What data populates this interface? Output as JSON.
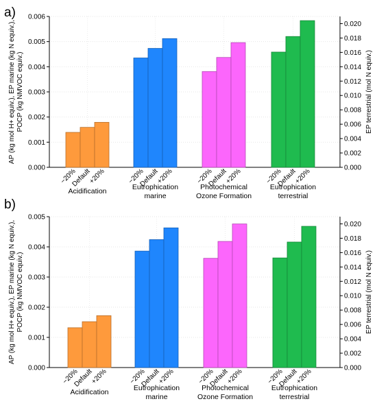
{
  "chart_data": [
    {
      "panel_label": "a)",
      "type": "bar",
      "title": "",
      "groups": [
        "Acidification",
        "Eutrophication marine",
        "Photochemical Ozone Formation",
        "Eutrophication terrestrial"
      ],
      "group_label_lines": [
        [
          "Acidification"
        ],
        [
          "Eutrophication",
          "marine"
        ],
        [
          "Photochemical",
          "Ozone Formation"
        ],
        [
          "Eutrophication",
          "terrestrial"
        ]
      ],
      "categories": [
        "−20%",
        "Default",
        "+20%"
      ],
      "group_colors": [
        "#fe9a3c",
        "#1f86fd",
        "#fc66fc",
        "#1fbb4f"
      ],
      "ylabel_left_lines": [
        "AP (kg mol H+ equiv.), EP marine (kg N equiv.),",
        "POCP (kg NMVOC equiv.)"
      ],
      "ylabel_right": "EP terrestrial (mol N equiv.)",
      "ylim_left": [
        0,
        0.006
      ],
      "yticks_left": [
        "0.000",
        "0.001",
        "0.002",
        "0.003",
        "0.004",
        "0.005",
        "0.006"
      ],
      "ylim_right": [
        0,
        0.021
      ],
      "yticks_right": [
        "0.000",
        "0.002",
        "0.004",
        "0.006",
        "0.008",
        "0.010",
        "0.012",
        "0.014",
        "0.016",
        "0.018",
        "0.020"
      ],
      "grid": true,
      "series": [
        {
          "group": "Acidification",
          "axis": "left",
          "values": [
            0.00139,
            0.00159,
            0.00179
          ]
        },
        {
          "group": "Eutrophication marine",
          "axis": "left",
          "values": [
            0.00435,
            0.00473,
            0.00512
          ]
        },
        {
          "group": "Photochemical Ozone Formation",
          "axis": "left",
          "values": [
            0.00381,
            0.00437,
            0.00496
          ]
        },
        {
          "group": "Eutrophication terrestrial",
          "axis": "right",
          "values": [
            0.01604,
            0.01821,
            0.02042
          ]
        }
      ]
    },
    {
      "panel_label": "b)",
      "type": "bar",
      "title": "",
      "groups": [
        "Acidification",
        "Eutrophication marine",
        "Photochemical Ozone Formation",
        "Eutrophication terrestrial"
      ],
      "group_label_lines": [
        [
          "Acidification"
        ],
        [
          "Eutrophication",
          "marine"
        ],
        [
          "Photochemical",
          "Ozone Formation"
        ],
        [
          "Eutrophication",
          "terrestrial"
        ]
      ],
      "categories": [
        "−20%",
        "Default",
        "+20%"
      ],
      "group_colors": [
        "#fe9a3c",
        "#1f86fd",
        "#fc66fc",
        "#1fbb4f"
      ],
      "ylabel_left_lines": [
        "AP (kg mol H+ equiv.), EP marine (kg N equiv.),",
        "POCP (kg NMVOC equiv.)"
      ],
      "ylabel_right": "EP terrestrial (mol N equiv.)",
      "ylim_left": [
        0,
        0.005
      ],
      "yticks_left": [
        "0.000",
        "0.001",
        "0.002",
        "0.003",
        "0.004",
        "0.005"
      ],
      "ylim_right": [
        0,
        0.021
      ],
      "yticks_right": [
        "0.000",
        "0.002",
        "0.004",
        "0.006",
        "0.008",
        "0.010",
        "0.012",
        "0.014",
        "0.016",
        "0.018",
        "0.020"
      ],
      "grid": true,
      "series": [
        {
          "group": "Acidification",
          "axis": "left",
          "values": [
            0.00132,
            0.00152,
            0.00172
          ]
        },
        {
          "group": "Eutrophication marine",
          "axis": "left",
          "values": [
            0.00386,
            0.00424,
            0.00463
          ]
        },
        {
          "group": "Photochemical Ozone Formation",
          "axis": "left",
          "values": [
            0.00362,
            0.00418,
            0.00476
          ]
        },
        {
          "group": "Eutrophication terrestrial",
          "axis": "right",
          "values": [
            0.01526,
            0.01747,
            0.01966
          ]
        }
      ]
    }
  ]
}
